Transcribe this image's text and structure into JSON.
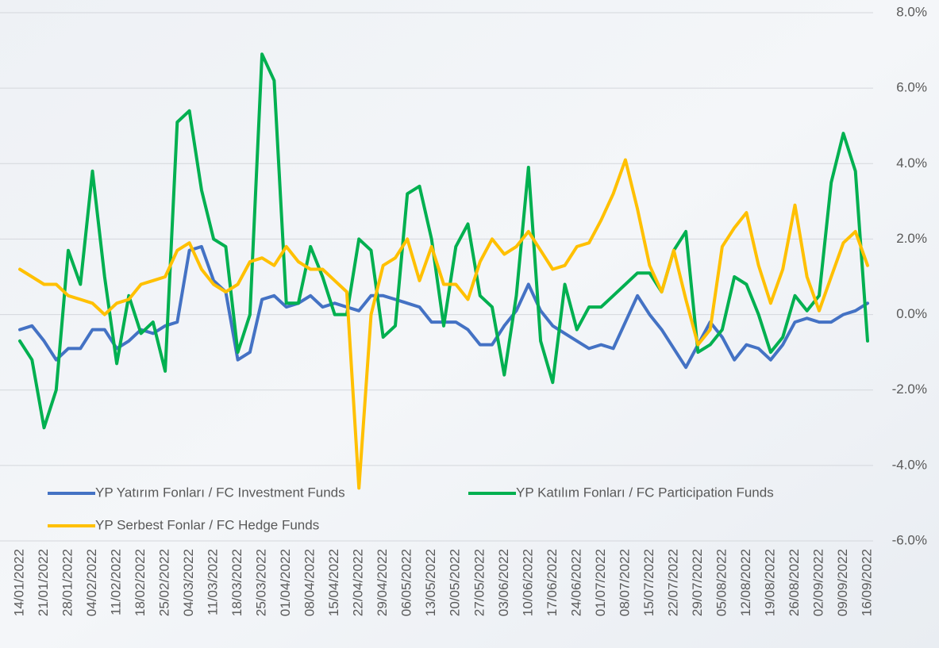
{
  "chart_data": {
    "type": "line",
    "categories": [
      "14/01/2022",
      null,
      "21/01/2022",
      null,
      "28/01/2022",
      null,
      "04/02/2022",
      null,
      "11/02/2022",
      null,
      "18/02/2022",
      null,
      "25/02/2022",
      null,
      "04/03/2022",
      null,
      "11/03/2022",
      null,
      "18/03/2022",
      null,
      "25/03/2022",
      null,
      "01/04/2022",
      null,
      "08/04/2022",
      null,
      "15/04/2022",
      null,
      "22/04/2022",
      null,
      "29/04/2022",
      null,
      "06/05/2022",
      null,
      "13/05/2022",
      null,
      "20/05/2022",
      null,
      "27/05/2022",
      null,
      "03/06/2022",
      null,
      "10/06/2022",
      null,
      "17/06/2022",
      null,
      "24/06/2022",
      null,
      "01/07/2022",
      null,
      "08/07/2022",
      null,
      "15/07/2022",
      null,
      "22/07/2022",
      null,
      "29/07/2022",
      null,
      "05/08/2022",
      null,
      "12/08/2022",
      null,
      "19/08/2022",
      null,
      "26/08/2022",
      null,
      "02/09/2022",
      null,
      "09/09/2022",
      null,
      "16/09/2022"
    ],
    "series": [
      {
        "name": "YP Yatırım Fonları / FC Investment Funds",
        "color": "#4472c4",
        "values": [
          -0.4,
          -0.3,
          -0.7,
          -1.2,
          -0.9,
          -0.9,
          -0.4,
          -0.4,
          -0.9,
          -0.7,
          -0.4,
          -0.5,
          -0.3,
          -0.2,
          1.7,
          1.8,
          0.9,
          0.6,
          -1.2,
          -1.0,
          0.4,
          0.5,
          0.2,
          0.3,
          0.5,
          0.2,
          0.3,
          0.2,
          0.1,
          0.5,
          0.5,
          0.4,
          0.3,
          0.2,
          -0.2,
          -0.2,
          -0.2,
          -0.4,
          -0.8,
          -0.8,
          -0.3,
          0.1,
          0.8,
          0.1,
          -0.3,
          -0.5,
          -0.7,
          -0.9,
          -0.8,
          -0.9,
          -0.2,
          0.5,
          0.0,
          -0.4,
          -0.9,
          -1.4,
          -0.8,
          -0.2,
          -0.6,
          -1.2,
          -0.8,
          -0.9,
          -1.2,
          -0.8,
          -0.2,
          -0.1,
          -0.2,
          -0.2,
          0.0,
          0.1,
          0.3
        ]
      },
      {
        "name": "YP Katılım Fonları / FC Participation Funds",
        "color": "#00b050",
        "values": [
          -0.7,
          -1.2,
          -3.0,
          -2.0,
          1.7,
          0.8,
          3.8,
          1.0,
          -1.3,
          0.5,
          -0.5,
          -0.2,
          -1.5,
          5.1,
          5.4,
          3.3,
          2.0,
          1.8,
          -1.0,
          0.0,
          6.9,
          6.2,
          0.3,
          0.3,
          1.8,
          1.0,
          0.0,
          0.0,
          2.0,
          1.7,
          -0.6,
          -0.3,
          3.2,
          3.4,
          2.0,
          -0.3,
          1.8,
          2.4,
          0.5,
          0.2,
          -1.6,
          0.5,
          3.9,
          -0.7,
          -1.8,
          0.8,
          -0.4,
          0.2,
          0.2,
          0.5,
          0.8,
          1.1,
          1.1,
          0.6,
          1.7,
          2.2,
          -1.0,
          -0.8,
          -0.4,
          1.0,
          0.8,
          0.0,
          -1.0,
          -0.6,
          0.5,
          0.1,
          0.5,
          3.5,
          4.8,
          3.8,
          -0.7
        ]
      },
      {
        "name": "YP Serbest Fonlar / FC Hedge Funds",
        "color": "#ffc000",
        "values": [
          1.2,
          1.0,
          0.8,
          0.8,
          0.5,
          0.4,
          0.3,
          0.0,
          0.3,
          0.4,
          0.8,
          0.9,
          1.0,
          1.7,
          1.9,
          1.2,
          0.8,
          0.6,
          0.8,
          1.4,
          1.5,
          1.3,
          1.8,
          1.4,
          1.2,
          1.2,
          0.9,
          0.6,
          -4.6,
          0.0,
          1.3,
          1.5,
          2.0,
          0.9,
          1.8,
          0.8,
          0.8,
          0.4,
          1.4,
          2.0,
          1.6,
          1.8,
          2.2,
          1.7,
          1.2,
          1.3,
          1.8,
          1.9,
          2.5,
          3.2,
          4.1,
          2.8,
          1.3,
          0.6,
          1.7,
          0.4,
          -0.8,
          -0.4,
          1.8,
          2.3,
          2.7,
          1.3,
          0.3,
          1.2,
          2.9,
          1.0,
          0.1,
          1.0,
          1.9,
          2.2,
          1.3
        ]
      }
    ],
    "ylim": [
      -6,
      8
    ],
    "yticks": [
      {
        "value": -6,
        "label": "-6.0%"
      },
      {
        "value": -4,
        "label": "-4.0%"
      },
      {
        "value": -2,
        "label": "-2.0%"
      },
      {
        "value": 0,
        "label": "0.0%"
      },
      {
        "value": 2,
        "label": "2.0%"
      },
      {
        "value": 4,
        "label": "4.0%"
      },
      {
        "value": 6,
        "label": "6.0%"
      },
      {
        "value": 8,
        "label": "8.0%"
      }
    ],
    "grid": true,
    "legend": "bottom-left"
  }
}
